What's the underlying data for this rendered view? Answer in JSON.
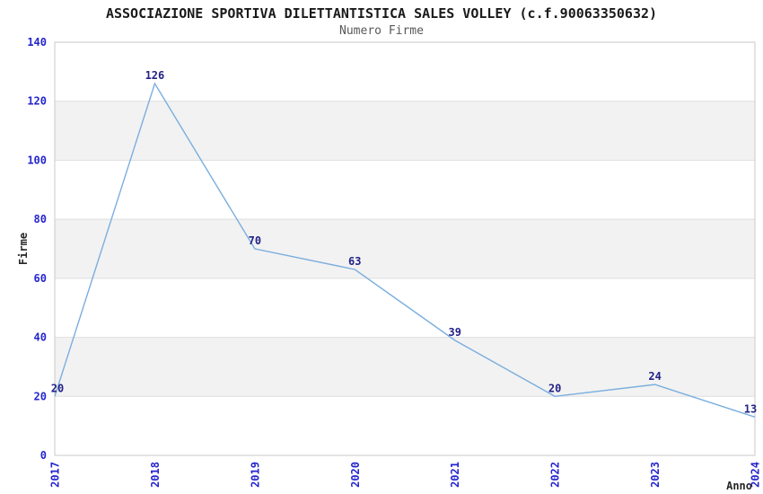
{
  "page": {
    "title": "ASSOCIAZIONE SPORTIVA DILETTANTISTICA SALES VOLLEY (c.f.90063350632)",
    "subtitle": "Numero Firme"
  },
  "chart_data": {
    "type": "line",
    "title": "ASSOCIAZIONE SPORTIVA DILETTANTISTICA SALES VOLLEY (c.f.90063350632)",
    "subtitle": "Numero Firme",
    "xlabel": "Anno",
    "ylabel": "Firme",
    "categories": [
      "2017",
      "2018",
      "2019",
      "2020",
      "2021",
      "2022",
      "2023",
      "2024"
    ],
    "series": [
      {
        "name": "Numero Firme",
        "values": [
          20,
          126,
          70,
          63,
          39,
          20,
          24,
          13
        ]
      }
    ],
    "ylim": [
      0,
      140
    ],
    "ytick_step": 20,
    "yticks": [
      0,
      20,
      40,
      60,
      80,
      100,
      120,
      140
    ],
    "x_tick_rotation": 90,
    "grid": "horizontal gridlines every 20 with alternating shaded bands (20-40, 60-80, 100-120)",
    "legend": "none",
    "markers": "none",
    "colors": {
      "line": "#7aaede",
      "data_label": "#232287",
      "tick_label": "#2525cf",
      "band_fill": "#f2f2f2",
      "gridline": "#dedede",
      "plot_border": "#c9c9c9",
      "title": "#1a1a1a",
      "subtitle": "#595959",
      "axis_label": "#262626",
      "background": "#ffffff"
    }
  }
}
